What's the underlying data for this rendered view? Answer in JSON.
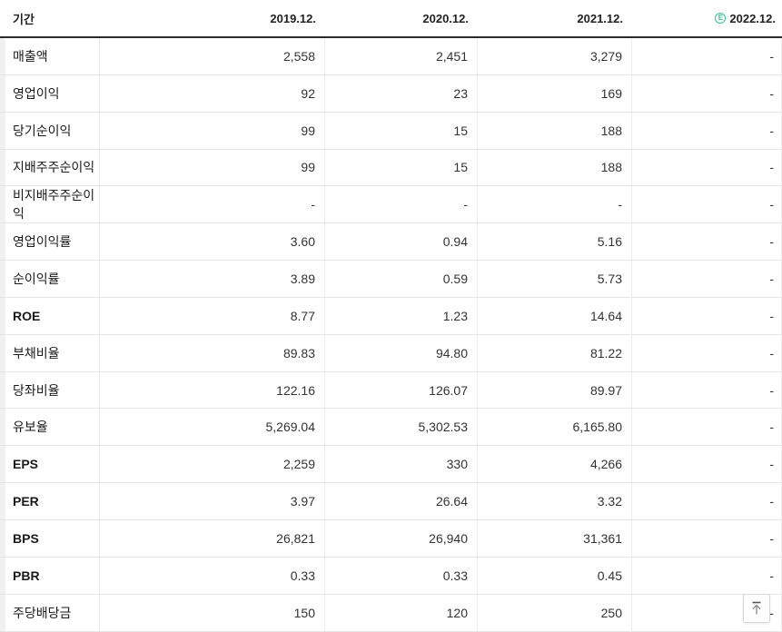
{
  "table": {
    "header": {
      "period_label": "기간",
      "columns": [
        "2019.12.",
        "2020.12.",
        "2021.12.",
        "2022.12."
      ],
      "estimate_icon_letter": "E",
      "estimate_column": "2022.12."
    },
    "rows": [
      {
        "label": "매출액",
        "bold": false,
        "values": [
          "2,558",
          "2,451",
          "3,279",
          "-"
        ]
      },
      {
        "label": "영업이익",
        "bold": false,
        "values": [
          "92",
          "23",
          "169",
          "-"
        ]
      },
      {
        "label": "당기순이익",
        "bold": false,
        "values": [
          "99",
          "15",
          "188",
          "-"
        ]
      },
      {
        "label": "지배주주순이익",
        "bold": false,
        "values": [
          "99",
          "15",
          "188",
          "-"
        ]
      },
      {
        "label": "비지배주주순이익",
        "bold": false,
        "values": [
          "-",
          "-",
          "-",
          "-"
        ]
      },
      {
        "label": "영업이익률",
        "bold": false,
        "values": [
          "3.60",
          "0.94",
          "5.16",
          "-"
        ]
      },
      {
        "label": "순이익률",
        "bold": false,
        "values": [
          "3.89",
          "0.59",
          "5.73",
          "-"
        ]
      },
      {
        "label": "ROE",
        "bold": true,
        "values": [
          "8.77",
          "1.23",
          "14.64",
          "-"
        ]
      },
      {
        "label": "부채비율",
        "bold": false,
        "values": [
          "89.83",
          "94.80",
          "81.22",
          "-"
        ]
      },
      {
        "label": "당좌비율",
        "bold": false,
        "values": [
          "122.16",
          "126.07",
          "89.97",
          "-"
        ]
      },
      {
        "label": "유보율",
        "bold": false,
        "values": [
          "5,269.04",
          "5,302.53",
          "6,165.80",
          "-"
        ]
      },
      {
        "label": "EPS",
        "bold": true,
        "values": [
          "2,259",
          "330",
          "4,266",
          "-"
        ]
      },
      {
        "label": "PER",
        "bold": true,
        "values": [
          "3.97",
          "26.64",
          "3.32",
          "-"
        ]
      },
      {
        "label": "BPS",
        "bold": true,
        "values": [
          "26,821",
          "26,940",
          "31,361",
          "-"
        ]
      },
      {
        "label": "PBR",
        "bold": true,
        "values": [
          "0.33",
          "0.33",
          "0.45",
          "-"
        ]
      },
      {
        "label": "주당배당금",
        "bold": false,
        "values": [
          "150",
          "120",
          "250",
          "-"
        ]
      }
    ]
  },
  "colors": {
    "estimate_green": "#2fc98f",
    "header_underline": "#2b2b2b",
    "row_separator": "#e6e6e6",
    "column_separator": "#ededed",
    "text": "#333333"
  },
  "scroll_top_button": {
    "tooltip": "맨위로"
  }
}
